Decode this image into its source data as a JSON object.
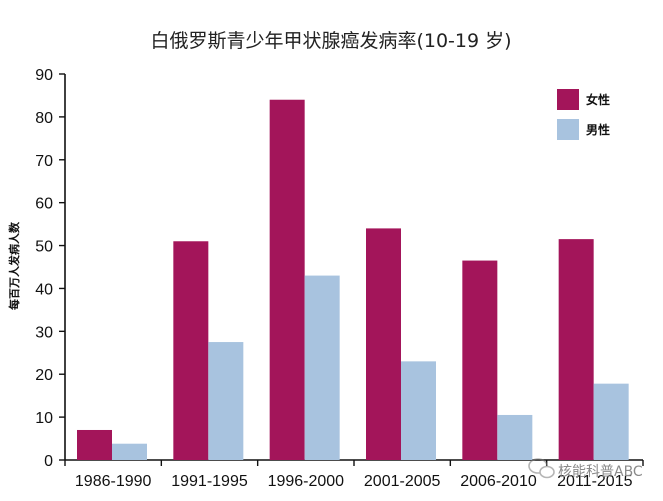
{
  "chart_data": {
    "type": "bar",
    "title": "白俄罗斯青少年甲状腺癌发病率(10-19 岁)",
    "xlabel": "",
    "ylabel": "每百万人发病人数",
    "categories": [
      "1986-1990",
      "1991-1995",
      "1996-2000",
      "2001-2005",
      "2006-2010",
      "2011-2015"
    ],
    "series": [
      {
        "name": "女性",
        "color": "#a3155a",
        "values": [
          7,
          51,
          84,
          54,
          46.5,
          51.5
        ]
      },
      {
        "name": "男性",
        "color": "#a8c3df",
        "values": [
          3.8,
          27.5,
          43,
          23,
          10.5,
          17.8
        ]
      }
    ],
    "ylim": [
      0,
      90
    ],
    "yticks": [
      0,
      10,
      20,
      30,
      40,
      50,
      60,
      70,
      80,
      90
    ],
    "grid": false,
    "legend_position": "top-right"
  },
  "watermark": {
    "icon": "wechat-icon",
    "text": "核能科普ABC"
  }
}
